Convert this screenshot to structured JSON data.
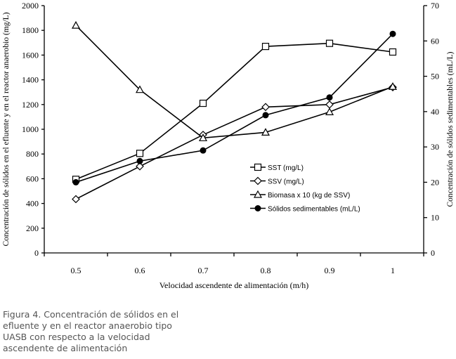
{
  "chart_data": {
    "type": "line",
    "title": "",
    "xlabel": "Velocidad ascendente de alimentación (m/h)",
    "ylabel": "Concentración de sólidos en el efluente y en el reactor anaerobio (mg/L)",
    "y2label": "Concentración de sólidos sedimentables (mL/L)",
    "categories": [
      "0.5",
      "0.6",
      "0.7",
      "0.8",
      "0.9",
      "1"
    ],
    "ylim": [
      0,
      2000
    ],
    "yticks": [
      0,
      200,
      400,
      600,
      800,
      1000,
      1200,
      1400,
      1600,
      1800,
      2000
    ],
    "y2lim": [
      0,
      70
    ],
    "y2ticks": [
      0,
      10,
      20,
      30,
      40,
      50,
      60,
      70
    ],
    "grid": false,
    "legend_position": "center-right",
    "series": [
      {
        "name": "SST (mg/L)",
        "marker": "square-open",
        "axis": "left",
        "values": [
          595,
          805,
          1210,
          1670,
          1695,
          1625
        ]
      },
      {
        "name": "SSV (mg/L)",
        "marker": "diamond-open",
        "axis": "left",
        "values": [
          435,
          700,
          955,
          1180,
          1200,
          1340
        ]
      },
      {
        "name": "Biomasa x 10 (kg de SSV)",
        "marker": "triangle-open",
        "axis": "left",
        "values": [
          1840,
          1320,
          930,
          975,
          1140,
          1345
        ]
      },
      {
        "name": "Sólidos sedimentables (mL/L)",
        "marker": "circle-filled",
        "axis": "right",
        "values": [
          20,
          26,
          29,
          39,
          44,
          62
        ]
      }
    ]
  },
  "caption": "Figura 4. Concentración de sólidos en el efluente y en el reactor anaerobio tipo UASB con respecto a la velocidad ascendente de alimentación"
}
